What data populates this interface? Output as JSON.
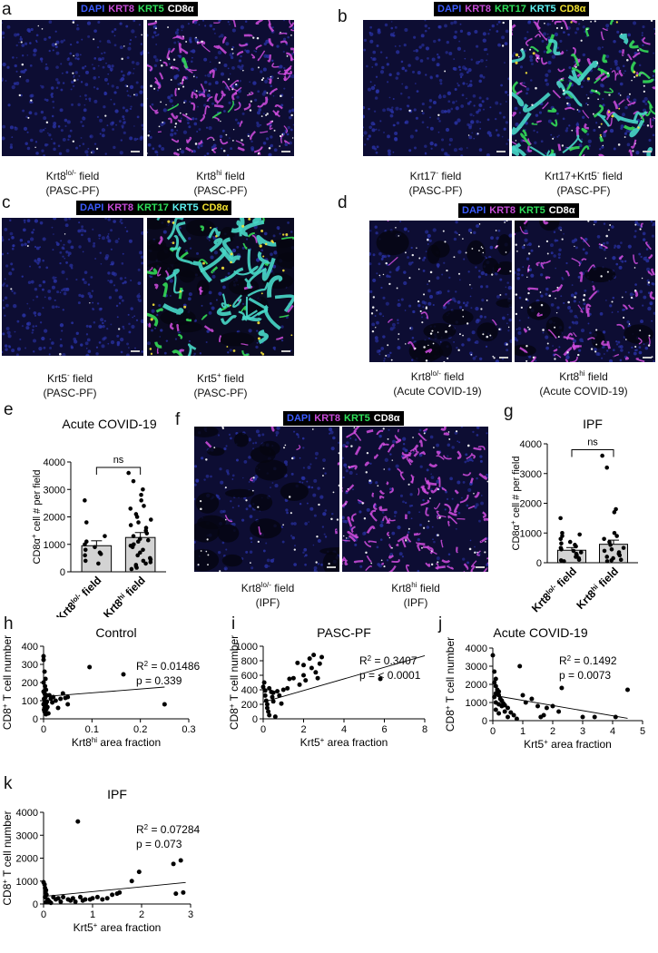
{
  "panels": {
    "a": {
      "label": "a",
      "stains": [
        {
          "text": "DAPI",
          "color": "#3b5bff"
        },
        {
          "text": "KRT8",
          "color": "#c64bd8"
        },
        {
          "text": "KRT5",
          "color": "#2fe05a"
        },
        {
          "text": "CD8α",
          "color": "#ffffff"
        }
      ],
      "left_caption": [
        "Krt8lo/- field",
        "(PASC-PF)"
      ],
      "right_caption": [
        "Krt8hi field",
        "(PASC-PF)"
      ]
    },
    "b": {
      "label": "b",
      "stains": [
        {
          "text": "DAPI",
          "color": "#3b5bff"
        },
        {
          "text": "KRT8",
          "color": "#c64bd8"
        },
        {
          "text": "KRT17",
          "color": "#2fe05a"
        },
        {
          "text": "KRT5",
          "color": "#5ef2f2"
        },
        {
          "text": "CD8α",
          "color": "#f2e230"
        }
      ],
      "left_caption": [
        "Krt17- field",
        "(PASC-PF)"
      ],
      "right_caption": [
        "Krt17+Krt5- field",
        "(PASC-PF)"
      ]
    },
    "c": {
      "label": "c",
      "stains": [
        {
          "text": "DAPI",
          "color": "#3b5bff"
        },
        {
          "text": "KRT8",
          "color": "#c64bd8"
        },
        {
          "text": "KRT17",
          "color": "#2fe05a"
        },
        {
          "text": "KRT5",
          "color": "#5ef2f2"
        },
        {
          "text": "CD8α",
          "color": "#f2e230"
        }
      ],
      "left_caption": [
        "Krt5- field",
        "(PASC-PF)"
      ],
      "right_caption": [
        "Krt5+ field",
        "(PASC-PF)"
      ]
    },
    "d": {
      "label": "d",
      "stains": [
        {
          "text": "DAPI",
          "color": "#3b5bff"
        },
        {
          "text": "KRT8",
          "color": "#c64bd8"
        },
        {
          "text": "KRT5",
          "color": "#2fe05a"
        },
        {
          "text": "CD8α",
          "color": "#ffffff"
        }
      ],
      "left_caption": [
        "Krt8lo/- field",
        "(Acute COVID-19)"
      ],
      "right_caption": [
        "Krt8hi field",
        "(Acute COVID-19)"
      ]
    },
    "f": {
      "label": "f",
      "stains": [
        {
          "text": "DAPI",
          "color": "#3b5bff"
        },
        {
          "text": "KRT8",
          "color": "#c64bd8"
        },
        {
          "text": "KRT5",
          "color": "#2fe05a"
        },
        {
          "text": "CD8α",
          "color": "#ffffff"
        }
      ],
      "left_caption": [
        "Krt8lo/- field",
        "(IPF)"
      ],
      "right_caption": [
        "Krt8hi field",
        "(IPF)"
      ]
    }
  },
  "chart_data": [
    {
      "id": "e",
      "type": "bar",
      "title": "Acute COVID-19",
      "ylabel": "CD8α+ cell # per field",
      "categories": [
        "Krt8lo/- field",
        "Krt8hi field"
      ],
      "values": [
        950,
        1250
      ],
      "errors": [
        180,
        180
      ],
      "ylim": [
        0,
        4000
      ],
      "yticks": [
        0,
        1000,
        2000,
        3000,
        4000
      ],
      "significance": "ns",
      "points": [
        [
          2600,
          1800,
          1300,
          1100,
          1000,
          900,
          800,
          700,
          650,
          600,
          400,
          300
        ],
        [
          3600,
          3300,
          3000,
          2800,
          2600,
          2400,
          2300,
          2100,
          2000,
          1900,
          1800,
          1700,
          1600,
          1500,
          1400,
          1300,
          1200,
          1150,
          1100,
          1000,
          950,
          900,
          800,
          700,
          600,
          500,
          450,
          400,
          350,
          300,
          250,
          200,
          150,
          100
        ]
      ]
    },
    {
      "id": "g",
      "type": "bar",
      "title": "IPF",
      "ylabel": "CD8α+ cell # per field",
      "categories": [
        "Krt8lo/- field",
        "Krt8hi field"
      ],
      "values": [
        420,
        620
      ],
      "errors": [
        90,
        140
      ],
      "ylim": [
        0,
        4000
      ],
      "yticks": [
        0,
        1000,
        2000,
        3000,
        4000
      ],
      "significance": "ns",
      "points": [
        [
          1500,
          1000,
          950,
          900,
          800,
          700,
          650,
          600,
          550,
          500,
          450,
          400,
          350,
          300,
          250,
          200,
          150,
          100,
          80,
          50
        ],
        [
          3600,
          3200,
          1800,
          1700,
          1000,
          900,
          800,
          700,
          600,
          500,
          450,
          400,
          350,
          300,
          250,
          200,
          150,
          100,
          80,
          50
        ]
      ]
    },
    {
      "id": "h",
      "type": "scatter",
      "title": "Control",
      "xlabel": "Krt8hi area fraction",
      "ylabel": "CD8+ T cell number",
      "xlim": [
        0,
        0.3
      ],
      "ylim": [
        0,
        400
      ],
      "xticks": [
        0,
        0.1,
        0.2,
        0.3
      ],
      "yticks": [
        0,
        100,
        200,
        300,
        400
      ],
      "r2": "0.01486",
      "p": "0.339",
      "fit": [
        [
          0,
          122
        ],
        [
          0.25,
          175
        ]
      ],
      "points": [
        [
          0,
          345
        ],
        [
          0,
          325
        ],
        [
          0.002,
          260
        ],
        [
          0.004,
          220
        ],
        [
          0,
          200
        ],
        [
          0.003,
          180
        ],
        [
          0.005,
          160
        ],
        [
          0,
          150
        ],
        [
          0.002,
          140
        ],
        [
          0.006,
          130
        ],
        [
          0.004,
          120
        ],
        [
          0.001,
          110
        ],
        [
          0.003,
          100
        ],
        [
          0.007,
          95
        ],
        [
          0.002,
          90
        ],
        [
          0.005,
          85
        ],
        [
          0,
          80
        ],
        [
          0.004,
          75
        ],
        [
          0.003,
          70
        ],
        [
          0.008,
          65
        ],
        [
          0.002,
          60
        ],
        [
          0.006,
          55
        ],
        [
          0.001,
          50
        ],
        [
          0.004,
          45
        ],
        [
          0.002,
          40
        ],
        [
          0.012,
          130
        ],
        [
          0.015,
          110
        ],
        [
          0.02,
          120
        ],
        [
          0.018,
          90
        ],
        [
          0.025,
          100
        ],
        [
          0.03,
          60
        ],
        [
          0.035,
          110
        ],
        [
          0.04,
          140
        ],
        [
          0.045,
          115
        ],
        [
          0.05,
          120
        ],
        [
          0.05,
          80
        ],
        [
          0.095,
          285
        ],
        [
          0.165,
          245
        ],
        [
          0.25,
          80
        ],
        [
          0.01,
          30
        ],
        [
          0.005,
          25
        ]
      ]
    },
    {
      "id": "i",
      "type": "scatter",
      "title": "PASC-PF",
      "xlabel": "Krt5+ area fraction",
      "ylabel": "CD8+ T cell number",
      "xlim": [
        0,
        8
      ],
      "ylim": [
        0,
        1000
      ],
      "xticks": [
        0,
        2,
        4,
        6,
        8
      ],
      "yticks": [
        0,
        200,
        400,
        600,
        800,
        1000
      ],
      "r2": "0.3407",
      "p": "< 0.0001",
      "fit": [
        [
          0,
          230
        ],
        [
          8,
          870
        ]
      ],
      "points": [
        [
          0,
          440
        ],
        [
          0.05,
          500
        ],
        [
          0.1,
          390
        ],
        [
          0.1,
          320
        ],
        [
          0.15,
          250
        ],
        [
          0.2,
          200
        ],
        [
          0.2,
          150
        ],
        [
          0.25,
          100
        ],
        [
          0.3,
          420
        ],
        [
          0.3,
          50
        ],
        [
          0.4,
          370
        ],
        [
          0.45,
          300
        ],
        [
          0.5,
          360
        ],
        [
          0.5,
          240
        ],
        [
          0.6,
          30
        ],
        [
          0.7,
          380
        ],
        [
          0.8,
          320
        ],
        [
          0.9,
          210
        ],
        [
          1.0,
          400
        ],
        [
          1.2,
          420
        ],
        [
          1.3,
          550
        ],
        [
          1.5,
          560
        ],
        [
          1.7,
          770
        ],
        [
          1.8,
          470
        ],
        [
          2.0,
          740
        ],
        [
          2.0,
          600
        ],
        [
          2.1,
          530
        ],
        [
          2.3,
          830
        ],
        [
          2.4,
          700
        ],
        [
          2.5,
          880
        ],
        [
          2.6,
          640
        ],
        [
          2.7,
          560
        ],
        [
          2.8,
          760
        ],
        [
          2.9,
          850
        ],
        [
          5.8,
          550
        ]
      ]
    },
    {
      "id": "j",
      "type": "scatter",
      "title": "Acute COVID-19",
      "xlabel": "Krt5+ area fraction",
      "ylabel": "CD8+ T cell number",
      "xlim": [
        0,
        5
      ],
      "ylim": [
        0,
        4000
      ],
      "xticks": [
        0,
        1,
        2,
        3,
        4,
        5
      ],
      "yticks": [
        0,
        1000,
        2000,
        3000,
        4000
      ],
      "r2": "0.1492",
      "p": "0.0073",
      "fit": [
        [
          0,
          1400
        ],
        [
          4.5,
          130
        ]
      ],
      "points": [
        [
          0,
          3600
        ],
        [
          0.05,
          2700
        ],
        [
          0.1,
          2300
        ],
        [
          0.05,
          2100
        ],
        [
          0.1,
          1900
        ],
        [
          0.15,
          1700
        ],
        [
          0.2,
          1600
        ],
        [
          0.1,
          1500
        ],
        [
          0.2,
          1400
        ],
        [
          0.05,
          1300
        ],
        [
          0.25,
          1200
        ],
        [
          0.3,
          1100
        ],
        [
          0.1,
          1000
        ],
        [
          0.35,
          950
        ],
        [
          0.2,
          900
        ],
        [
          0.4,
          850
        ],
        [
          0.3,
          800
        ],
        [
          0.5,
          700
        ],
        [
          0.1,
          600
        ],
        [
          0.4,
          500
        ],
        [
          0.6,
          450
        ],
        [
          0.2,
          400
        ],
        [
          0.7,
          300
        ],
        [
          0.5,
          200
        ],
        [
          0.9,
          3000
        ],
        [
          1.0,
          1400
        ],
        [
          1.1,
          1000
        ],
        [
          1.3,
          1200
        ],
        [
          1.5,
          800
        ],
        [
          1.6,
          200
        ],
        [
          1.7,
          300
        ],
        [
          1.8,
          700
        ],
        [
          2.0,
          800
        ],
        [
          2.2,
          500
        ],
        [
          2.3,
          1800
        ],
        [
          3.0,
          200
        ],
        [
          3.4,
          200
        ],
        [
          4.1,
          200
        ],
        [
          4.5,
          1700
        ],
        [
          0.8,
          100
        ]
      ]
    },
    {
      "id": "k",
      "type": "scatter",
      "title": "IPF",
      "xlabel": "Krt5+ area fraction",
      "ylabel": "CD8+ T cell number",
      "xlim": [
        0,
        3
      ],
      "ylim": [
        0,
        4000
      ],
      "xticks": [
        0,
        1,
        2,
        3
      ],
      "yticks": [
        0,
        1000,
        2000,
        3000,
        4000
      ],
      "r2": "0.07284",
      "p": "0.073",
      "fit": [
        [
          0,
          330
        ],
        [
          2.9,
          940
        ]
      ],
      "points": [
        [
          0,
          950
        ],
        [
          0.02,
          850
        ],
        [
          0.03,
          700
        ],
        [
          0.05,
          600
        ],
        [
          0.04,
          500
        ],
        [
          0.06,
          400
        ],
        [
          0.03,
          300
        ],
        [
          0.08,
          200
        ],
        [
          0.1,
          150
        ],
        [
          0.12,
          100
        ],
        [
          0.05,
          80
        ],
        [
          0.15,
          50
        ],
        [
          0.2,
          300
        ],
        [
          0.25,
          200
        ],
        [
          0.3,
          250
        ],
        [
          0.35,
          100
        ],
        [
          0.4,
          300
        ],
        [
          0.5,
          200
        ],
        [
          0.55,
          150
        ],
        [
          0.6,
          250
        ],
        [
          0.65,
          100
        ],
        [
          0.7,
          3600
        ],
        [
          0.75,
          300
        ],
        [
          0.8,
          150
        ],
        [
          0.85,
          200
        ],
        [
          0.95,
          200
        ],
        [
          1.0,
          250
        ],
        [
          1.1,
          300
        ],
        [
          1.2,
          200
        ],
        [
          1.3,
          250
        ],
        [
          1.4,
          400
        ],
        [
          1.5,
          450
        ],
        [
          1.55,
          500
        ],
        [
          1.8,
          1000
        ],
        [
          1.95,
          1400
        ],
        [
          2.65,
          1750
        ],
        [
          2.7,
          450
        ],
        [
          2.8,
          1900
        ],
        [
          2.85,
          500
        ]
      ]
    }
  ]
}
